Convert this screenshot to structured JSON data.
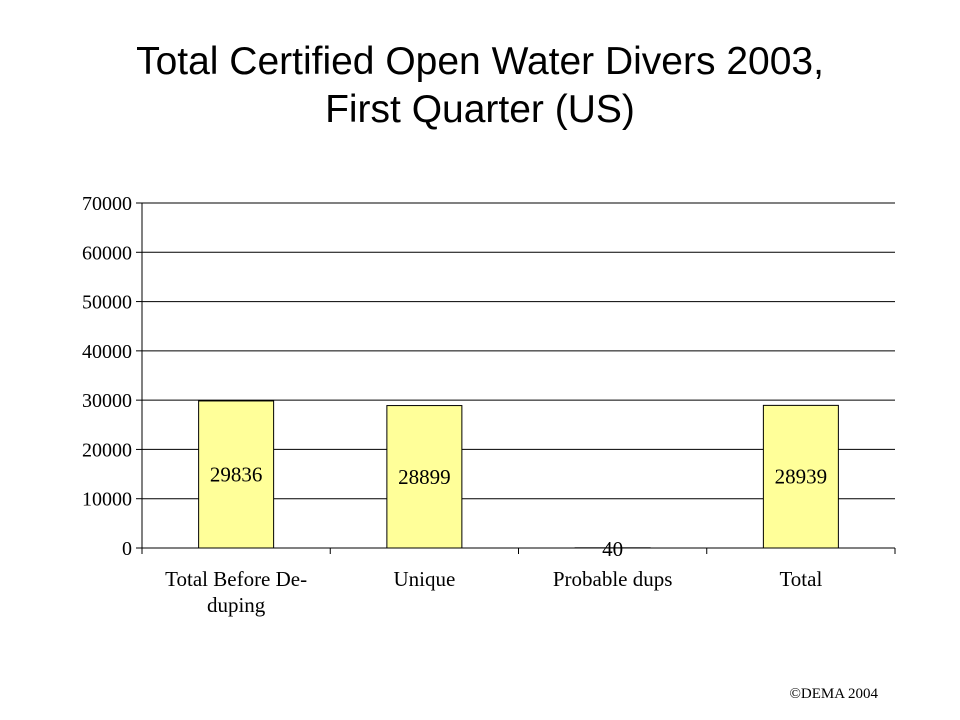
{
  "title_lines": [
    "Total Certified Open Water Divers 2003,",
    "First Quarter (US)"
  ],
  "copyright": "©DEMA 2004",
  "chart_data": {
    "type": "bar",
    "title": "Total Certified Open Water Divers 2003, First Quarter (US)",
    "categories": [
      "Total Before De-duping",
      "Unique",
      "Probable dups",
      "Total"
    ],
    "category_label_lines": [
      [
        "Total Before De-",
        "duping"
      ],
      [
        "Unique"
      ],
      [
        "Probable dups"
      ],
      [
        "Total"
      ]
    ],
    "values": [
      29836,
      28899,
      40,
      28939
    ],
    "data_labels": [
      "29836",
      "28899",
      "40",
      "28939"
    ],
    "ylim": [
      0,
      70000
    ],
    "yticks": [
      0,
      10000,
      20000,
      30000,
      40000,
      50000,
      60000,
      70000
    ],
    "grid": true,
    "xlabel": "",
    "ylabel": "",
    "bar_color": "#FFFF99",
    "bar_edge_color": "#000000"
  }
}
